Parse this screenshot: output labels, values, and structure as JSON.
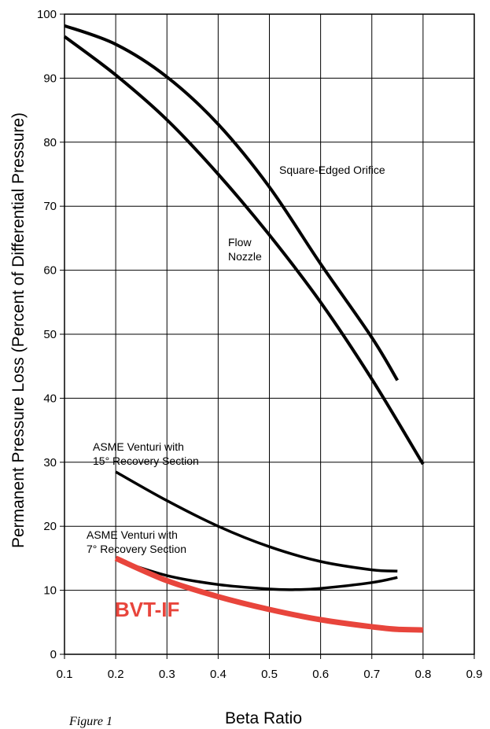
{
  "chart_data": {
    "type": "line",
    "xlabel": "Beta Ratio",
    "ylabel": "Permanent Pressure Loss (Percent of Differential Pressure)",
    "xlim": [
      0.1,
      0.9
    ],
    "ylim": [
      0,
      100
    ],
    "x_ticks": [
      "0.1",
      "0.2",
      "0.3",
      "0.4",
      "0.5",
      "0.6",
      "0.7",
      "0.8",
      "0.9"
    ],
    "y_ticks": [
      "0",
      "10",
      "20",
      "30",
      "40",
      "50",
      "60",
      "70",
      "80",
      "90",
      "100"
    ],
    "grid": true,
    "series": [
      {
        "name": "Square-Edged Orifice",
        "color": "#000000",
        "points": [
          [
            0.1,
            98.2
          ],
          [
            0.2,
            95.3
          ],
          [
            0.3,
            90.2
          ],
          [
            0.4,
            82.8
          ],
          [
            0.5,
            73.0
          ],
          [
            0.6,
            61.0
          ],
          [
            0.7,
            49.5
          ],
          [
            0.75,
            42.8
          ]
        ]
      },
      {
        "name": "Flow Nozzle",
        "color": "#000000",
        "points": [
          [
            0.1,
            96.5
          ],
          [
            0.2,
            90.5
          ],
          [
            0.3,
            83.5
          ],
          [
            0.4,
            75.0
          ],
          [
            0.5,
            65.5
          ],
          [
            0.6,
            55.0
          ],
          [
            0.7,
            43.0
          ],
          [
            0.8,
            29.7
          ]
        ]
      },
      {
        "name": "ASME Venturi with 15° Recovery Section",
        "label_lines": [
          "ASME Venturi with",
          "15° Recovery Section"
        ],
        "color": "#000000",
        "points": [
          [
            0.2,
            28.5
          ],
          [
            0.3,
            24.0
          ],
          [
            0.4,
            20.0
          ],
          [
            0.5,
            16.8
          ],
          [
            0.6,
            14.5
          ],
          [
            0.7,
            13.2
          ],
          [
            0.75,
            13.0
          ]
        ]
      },
      {
        "name": "ASME Venturi with 7° Recovery Section",
        "label_lines": [
          "ASME Venturi with",
          "7° Recovery Section"
        ],
        "color": "#000000",
        "points": [
          [
            0.2,
            14.8
          ],
          [
            0.3,
            12.3
          ],
          [
            0.4,
            10.9
          ],
          [
            0.5,
            10.2
          ],
          [
            0.55,
            10.1
          ],
          [
            0.6,
            10.3
          ],
          [
            0.7,
            11.2
          ],
          [
            0.75,
            12.0
          ]
        ]
      },
      {
        "name": "BVT-IF",
        "color": "#e8453c",
        "points": [
          [
            0.2,
            15.0
          ],
          [
            0.3,
            11.5
          ],
          [
            0.4,
            9.0
          ],
          [
            0.5,
            7.0
          ],
          [
            0.6,
            5.4
          ],
          [
            0.7,
            4.3
          ],
          [
            0.75,
            3.9
          ],
          [
            0.8,
            3.8
          ]
        ]
      }
    ]
  },
  "caption": "Figure 1"
}
